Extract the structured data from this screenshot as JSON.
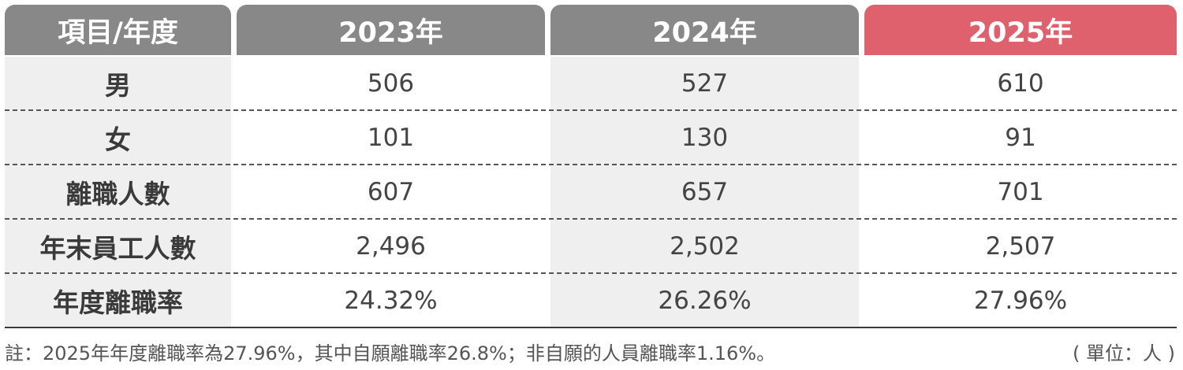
{
  "table": {
    "header": {
      "item_year": "項目/年度",
      "years": [
        "2023年",
        "2024年",
        "2025年"
      ]
    },
    "rows": [
      {
        "label": "男",
        "values": [
          "506",
          "527",
          "610"
        ]
      },
      {
        "label": "女",
        "values": [
          "101",
          "130",
          "91"
        ]
      },
      {
        "label": "離職人數",
        "values": [
          "607",
          "657",
          "701"
        ]
      },
      {
        "label": "年末員工人數",
        "values": [
          "2,496",
          "2,502",
          "2,507"
        ]
      },
      {
        "label": "年度離職率",
        "values": [
          "24.32%",
          "26.26%",
          "27.96%"
        ]
      }
    ]
  },
  "footnote": "註：2025年年度離職率為27.96%，其中自願離職率26.8%；非自願的人員離職率1.16%。",
  "unit": "( 單位：人 )",
  "colors": {
    "header_gray": "#888888",
    "header_highlight": "#e0616e",
    "shade": "#efefef"
  }
}
